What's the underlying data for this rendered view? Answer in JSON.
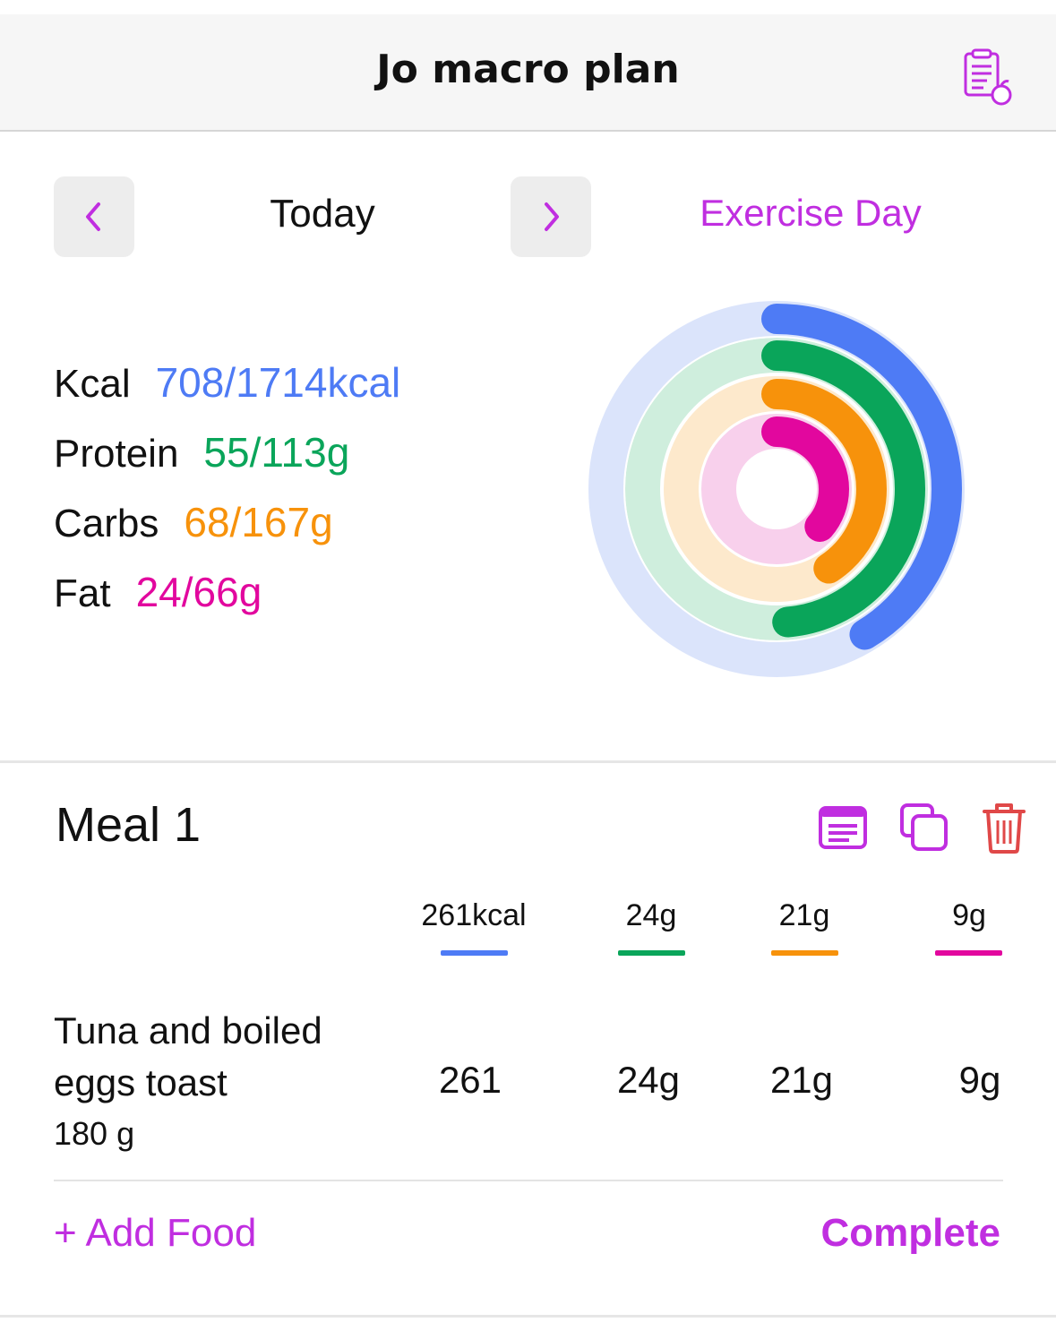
{
  "header": {
    "title": "Jo macro plan"
  },
  "day_nav": {
    "label": "Today",
    "day_type": "Exercise Day"
  },
  "colors": {
    "accent": "#c02ee0",
    "kcal": "#4e7bf5",
    "protein": "#0aa55a",
    "carbs": "#f7920b",
    "fat": "#e2079e",
    "kcal_track": "#dbe4fb",
    "protein_track": "#cfeedd",
    "carbs_track": "#fde9cc",
    "fat_track": "#f8d0ec",
    "delete": "#e04848"
  },
  "summary": {
    "kcal": {
      "label": "Kcal",
      "value": "708/1714kcal",
      "current": 708,
      "target": 1714
    },
    "protein": {
      "label": "Protein",
      "value": "55/113g",
      "current": 55,
      "target": 113
    },
    "carbs": {
      "label": "Carbs",
      "value": "68/167g",
      "current": 68,
      "target": 167
    },
    "fat": {
      "label": "Fat",
      "value": "24/66g",
      "current": 24,
      "target": 66
    }
  },
  "meal": {
    "title": "Meal 1",
    "icons": [
      "notes-icon",
      "duplicate-icon",
      "trash-icon"
    ],
    "totals": {
      "kcal": "261kcal",
      "protein": "24g",
      "carbs": "21g",
      "fat": "9g"
    },
    "foods": [
      {
        "name": "Tuna and boiled eggs toast",
        "quantity": "180 g",
        "kcal": "261",
        "protein": "24g",
        "carbs": "21g",
        "fat": "9g"
      }
    ],
    "add_food_label": "+ Add Food",
    "complete_label": "Complete"
  }
}
